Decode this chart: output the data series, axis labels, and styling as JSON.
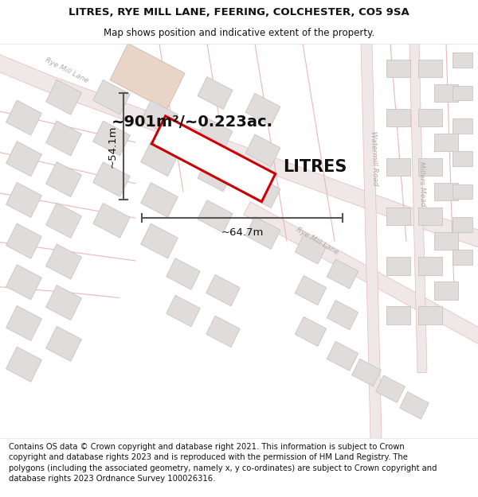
{
  "title_line1": "LITRES, RYE MILL LANE, FEERING, COLCHESTER, CO5 9SA",
  "title_line2": "Map shows position and indicative extent of the property.",
  "area_label": "~901m²/~0.223ac.",
  "property_label": "LITRES",
  "width_label": "~64.7m",
  "height_label": "~54.1m",
  "footer_text": "Contains OS data © Crown copyright and database right 2021. This information is subject to Crown copyright and database rights 2023 and is reproduced with the permission of HM Land Registry. The polygons (including the associated geometry, namely x, y co-ordinates) are subject to Crown copyright and database rights 2023 Ordnance Survey 100026316.",
  "map_bg": "#f7f4f4",
  "road_outline": "#e8b8b8",
  "road_fill": "#f0e8e8",
  "building_fill": "#e0dcdc",
  "building_edge": "#c8c4c4",
  "property_fill": "#ffffff",
  "property_edge": "#cc0000",
  "highlight_fill": "#e8d5c8",
  "highlight_edge": "#d0b8a8",
  "dim_color": "#555555",
  "text_color": "#111111",
  "road_label_color": "#aaaaaa",
  "title_fontsize": 9.5,
  "subtitle_fontsize": 8.5,
  "area_fontsize": 14,
  "property_name_fontsize": 15,
  "dim_fontsize": 9.5,
  "road_label_fontsize": 6.5,
  "footer_fontsize": 7.2
}
